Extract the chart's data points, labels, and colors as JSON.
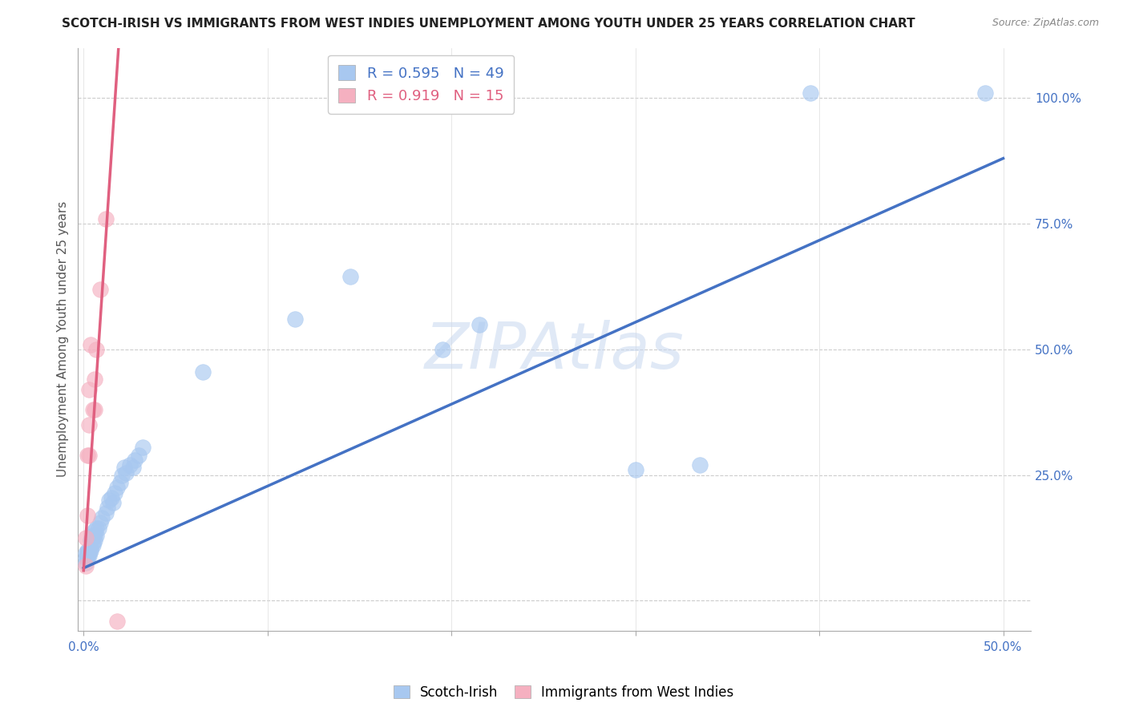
{
  "title": "SCOTCH-IRISH VS IMMIGRANTS FROM WEST INDIES UNEMPLOYMENT AMONG YOUTH UNDER 25 YEARS CORRELATION CHART",
  "source": "Source: ZipAtlas.com",
  "ylabel": "Unemployment Among Youth under 25 years",
  "xmin": -0.003,
  "xmax": 0.515,
  "ymin": -0.06,
  "ymax": 1.1,
  "xtick_vals": [
    0.0,
    0.1,
    0.2,
    0.3,
    0.4,
    0.5
  ],
  "xtick_labels": [
    "0.0%",
    "",
    "",
    "",
    "",
    "50.0%"
  ],
  "yticks_right": [
    0.0,
    0.25,
    0.5,
    0.75,
    1.0
  ],
  "ytick_labels_right": [
    "",
    "25.0%",
    "50.0%",
    "75.0%",
    "100.0%"
  ],
  "blue_R": 0.595,
  "blue_N": 49,
  "pink_R": 0.919,
  "pink_N": 15,
  "blue_color": "#a8c8f0",
  "pink_color": "#f5b0c0",
  "blue_line_color": "#4472c4",
  "pink_line_color": "#e06080",
  "legend_label_blue": "Scotch-Irish",
  "legend_label_pink": "Immigrants from West Indies",
  "watermark": "ZIPAtlas",
  "blue_scatter_x": [
    0.001,
    0.001,
    0.001,
    0.002,
    0.002,
    0.002,
    0.002,
    0.003,
    0.003,
    0.003,
    0.004,
    0.004,
    0.004,
    0.005,
    0.005,
    0.005,
    0.006,
    0.006,
    0.006,
    0.007,
    0.007,
    0.008,
    0.009,
    0.01,
    0.012,
    0.013,
    0.014,
    0.015,
    0.016,
    0.017,
    0.018,
    0.02,
    0.021,
    0.022,
    0.023,
    0.025,
    0.027,
    0.028,
    0.03,
    0.032,
    0.065,
    0.115,
    0.145,
    0.195,
    0.215,
    0.3,
    0.335,
    0.395,
    0.49
  ],
  "blue_scatter_y": [
    0.075,
    0.085,
    0.095,
    0.085,
    0.09,
    0.095,
    0.1,
    0.09,
    0.095,
    0.1,
    0.1,
    0.105,
    0.12,
    0.11,
    0.115,
    0.13,
    0.12,
    0.13,
    0.14,
    0.13,
    0.145,
    0.145,
    0.155,
    0.165,
    0.175,
    0.185,
    0.2,
    0.205,
    0.195,
    0.215,
    0.225,
    0.235,
    0.25,
    0.265,
    0.255,
    0.27,
    0.265,
    0.28,
    0.29,
    0.305,
    0.455,
    0.56,
    0.645,
    0.5,
    0.55,
    0.26,
    0.27,
    1.01,
    1.01
  ],
  "pink_scatter_x": [
    0.001,
    0.001,
    0.002,
    0.002,
    0.003,
    0.003,
    0.003,
    0.004,
    0.005,
    0.006,
    0.006,
    0.007,
    0.009,
    0.012,
    0.018
  ],
  "pink_scatter_y": [
    0.07,
    0.125,
    0.17,
    0.29,
    0.29,
    0.35,
    0.42,
    0.51,
    0.38,
    0.38,
    0.44,
    0.5,
    0.62,
    0.76,
    -0.04
  ],
  "blue_line_x0": 0.0,
  "blue_line_y0": 0.065,
  "blue_line_x1": 0.5,
  "blue_line_y1": 0.88,
  "pink_line_x0": 0.0,
  "pink_line_y0": 0.06,
  "pink_line_x1": 0.019,
  "pink_line_y1": 1.1
}
